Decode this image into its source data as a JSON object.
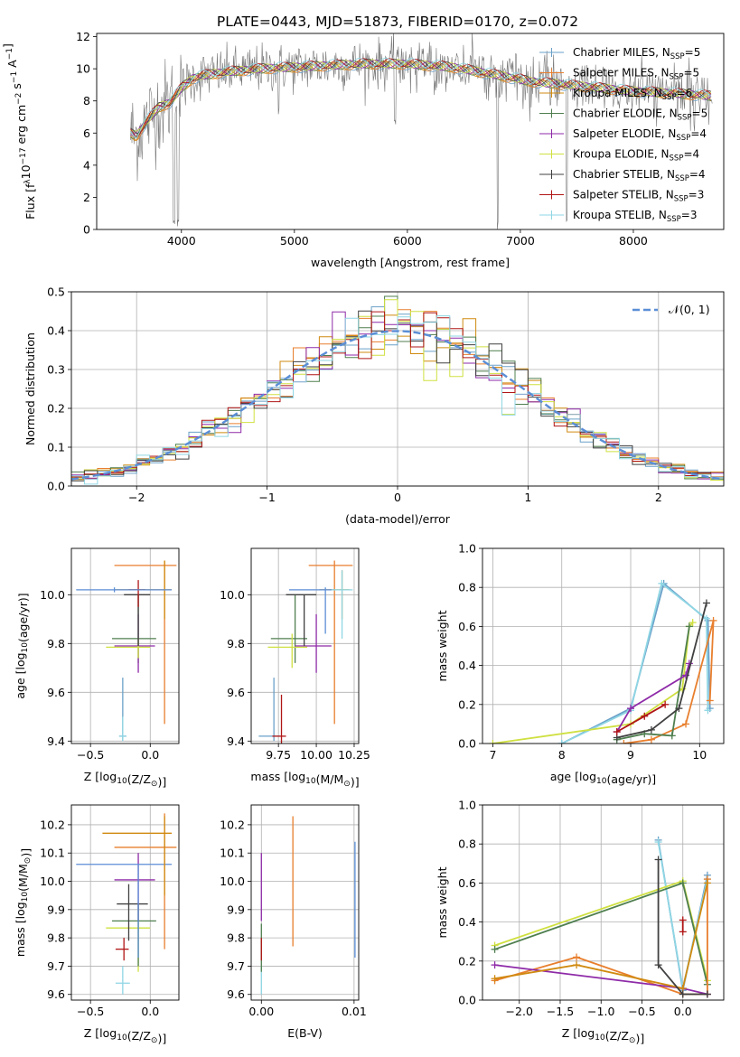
{
  "figure_title": "PLATE=0443, MJD=51873, FIBERID=0170, z=0.072",
  "colors": {
    "Chabrier MILES": "#6aa0c8",
    "Salpeter MILES": "#e87f2e",
    "Kroupa MILES": "#d08a10",
    "Chabrier ELODIE": "#4f7f4f",
    "Salpeter ELODIE": "#8e2aa8",
    "Kroupa ELODIE": "#cfe040",
    "Chabrier STELIB": "#404040",
    "Salpeter STELIB": "#b01515",
    "Kroupa STELIB": "#8fd6e4",
    "normal": "#5b8ed6",
    "grid": "#b0b0b0"
  },
  "legend_spectrum": [
    {
      "label": "Chabrier MILES, N",
      "sub": "SSP",
      "eq": "=5",
      "key": "Chabrier MILES"
    },
    {
      "label": "Salpeter MILES, N",
      "sub": "SSP",
      "eq": "=5",
      "key": "Salpeter MILES"
    },
    {
      "label": "Kroupa MILES, N",
      "sub": "SSP",
      "eq": "=6",
      "key": "Kroupa MILES"
    },
    {
      "label": "Chabrier ELODIE, N",
      "sub": "SSP",
      "eq": "=5",
      "key": "Chabrier ELODIE"
    },
    {
      "label": "Salpeter ELODIE, N",
      "sub": "SSP",
      "eq": "=4",
      "key": "Salpeter ELODIE"
    },
    {
      "label": "Kroupa ELODIE, N",
      "sub": "SSP",
      "eq": "=4",
      "key": "Kroupa ELODIE"
    },
    {
      "label": "Chabrier STELIB, N",
      "sub": "SSP",
      "eq": "=4",
      "key": "Chabrier STELIB"
    },
    {
      "label": "Salpeter STELIB, N",
      "sub": "SSP",
      "eq": "=3",
      "key": "Salpeter STELIB"
    },
    {
      "label": "Kroupa STELIB, N",
      "sub": "SSP",
      "eq": "=3",
      "key": "Kroupa STELIB"
    }
  ],
  "chart_data": [
    {
      "id": "spectrum",
      "type": "line",
      "xlabel": "wavelength [Angstrom, rest frame]",
      "ylabel_parts": [
        "Flux [f",
        "λ",
        "10",
        "−17",
        " erg cm",
        "−2",
        " s",
        "−1",
        " A",
        "−1",
        "]"
      ],
      "xlim": [
        3250,
        8800
      ],
      "ylim": [
        0,
        12.2
      ],
      "xticks": [
        4000,
        5000,
        6000,
        7000,
        8000
      ],
      "yticks": [
        0,
        2,
        4,
        6,
        8,
        10,
        12
      ],
      "continuum": {
        "x": [
          3550,
          3600,
          3700,
          3800,
          3900,
          4000,
          4100,
          4200,
          4400,
          4700,
          5000,
          5300,
          5600,
          6000,
          6400,
          6800,
          7100,
          7400,
          7700,
          8000,
          8300,
          8500,
          8700
        ],
        "y": [
          6.0,
          5.8,
          6.8,
          7.6,
          7.9,
          8.8,
          9.4,
          9.6,
          9.8,
          10.0,
          10.1,
          10.2,
          10.3,
          10.3,
          10.1,
          9.6,
          9.2,
          9.0,
          8.8,
          8.6,
          8.5,
          8.4,
          8.3
        ]
      },
      "dips": [
        {
          "x": 3934,
          "y": 0.0
        },
        {
          "x": 3969,
          "y": 0.0
        },
        {
          "x": 6800,
          "y": 0.0
        },
        {
          "x": 7410,
          "y": 0.0
        },
        {
          "x": 4861,
          "y": 7.0
        },
        {
          "x": 5890,
          "y": 6.5
        },
        {
          "x": 8540,
          "y": 6.0
        }
      ]
    },
    {
      "id": "residual-histogram",
      "type": "step",
      "xlabel": "(data-model)/error",
      "ylabel": "Normed distribution",
      "xlim": [
        -2.5,
        2.5
      ],
      "ylim": [
        0,
        0.5
      ],
      "xticks": [
        -2,
        -1,
        0,
        1,
        2
      ],
      "xtick_labels": [
        "−2",
        "−1",
        "0",
        "1",
        "2"
      ],
      "yticks": [
        0,
        0.1,
        0.2,
        0.3,
        0.4,
        0.5
      ],
      "ytick_labels": [
        "0.0",
        "0.1",
        "0.2",
        "0.3",
        "0.4",
        "0.5"
      ],
      "bin_width": 0.1,
      "legend_math": "𝒩(0, 1)",
      "series_keys": [
        "Chabrier MILES",
        "Salpeter MILES",
        "Kroupa MILES",
        "Chabrier ELODIE",
        "Salpeter ELODIE",
        "Kroupa ELODIE",
        "Chabrier STELIB",
        "Salpeter STELIB",
        "Kroupa STELIB"
      ]
    },
    {
      "id": "age-vs-Z",
      "type": "errorbar",
      "xlabel_parts": [
        "Z [log",
        "10",
        "(Z/Z",
        "⊙",
        ")]"
      ],
      "ylabel_parts": [
        "age  [log",
        "10",
        "(age/yr)]"
      ],
      "xlim": [
        -0.66,
        0.24
      ],
      "ylim": [
        9.39,
        10.19
      ],
      "xticks": [
        -0.5,
        0.0
      ],
      "xtick_labels": [
        "−0.5",
        "0.0"
      ],
      "yticks": [
        9.4,
        9.6,
        9.8,
        10.0
      ],
      "ytick_labels": [
        "9.4",
        "9.6",
        "9.8",
        "10.0"
      ],
      "points": [
        {
          "key": "Chabrier MILES",
          "x": -0.23,
          "xlo": -0.26,
          "xhi": -0.2,
          "y": 9.42,
          "ylo": 9.4,
          "yhi": 9.66
        },
        {
          "key": "Kroupa STELIB",
          "x": -0.23,
          "xlo": -0.26,
          "xhi": -0.2,
          "y": 9.42,
          "ylo": 9.4,
          "yhi": 9.5
        },
        {
          "key": "Salpeter MILES",
          "x": 0.12,
          "xlo": -0.3,
          "xhi": 0.22,
          "y": 10.12,
          "ylo": 9.47,
          "yhi": 10.14
        },
        {
          "key": "Kroupa MILES",
          "x": 0.12,
          "xlo": -0.3,
          "xhi": 0.18,
          "y": 10.02,
          "ylo": 9.9,
          "yhi": 10.14
        },
        {
          "key": "Chabrier ELODIE",
          "x": -0.1,
          "xlo": -0.32,
          "xhi": 0.05,
          "y": 9.82,
          "ylo": 9.72,
          "yhi": 10.0
        },
        {
          "key": "Salpeter ELODIE",
          "x": -0.1,
          "xlo": -0.3,
          "xhi": 0.04,
          "y": 9.79,
          "ylo": 9.68,
          "yhi": 9.92
        },
        {
          "key": "Kroupa ELODIE",
          "x": -0.1,
          "xlo": -0.37,
          "xhi": 0.0,
          "y": 9.785,
          "ylo": 9.74,
          "yhi": 9.82
        },
        {
          "key": "Chabrier STELIB",
          "x": -0.1,
          "xlo": -0.22,
          "xhi": 0.0,
          "y": 10.0,
          "ylo": 9.79,
          "yhi": 10.0
        },
        {
          "key": "Salpeter STELIB",
          "x": -0.1,
          "xlo": -0.18,
          "xhi": -0.04,
          "y": 10.02,
          "ylo": 9.95,
          "yhi": 10.06
        },
        {
          "key": "normal",
          "x": -0.3,
          "xlo": -0.62,
          "xhi": 0.18,
          "y": 10.02,
          "ylo": 10.01,
          "yhi": 10.03
        }
      ]
    },
    {
      "id": "age-vs-mass",
      "type": "errorbar",
      "xlabel_parts": [
        "mass [log",
        "10",
        "(M/M",
        "⊙",
        ")]"
      ],
      "ylabel_parts": [],
      "xlim": [
        9.57,
        10.28
      ],
      "ylim": [
        9.39,
        10.19
      ],
      "xticks": [
        9.75,
        10.0,
        10.25
      ],
      "xtick_labels": [
        "9.75",
        "10.00",
        "10.25"
      ],
      "yticks": [
        9.4,
        9.6,
        9.8,
        10.0
      ],
      "ytick_labels": [
        "9.4",
        "9.6",
        "9.8",
        "10.0"
      ],
      "points": [
        {
          "key": "Chabrier MILES",
          "x": 9.72,
          "xlo": 9.62,
          "xhi": 9.76,
          "y": 9.42,
          "ylo": 9.4,
          "yhi": 9.66
        },
        {
          "key": "Salpeter STELIB",
          "x": 9.77,
          "xlo": 9.71,
          "xhi": 9.8,
          "y": 9.42,
          "ylo": 9.38,
          "yhi": 9.59
        },
        {
          "key": "Salpeter MILES",
          "x": 10.12,
          "xlo": 9.95,
          "xhi": 10.24,
          "y": 10.12,
          "ylo": 9.47,
          "yhi": 10.14
        },
        {
          "key": "Kroupa MILES",
          "x": 10.17,
          "xlo": 10.02,
          "xhi": 10.22,
          "y": 10.02,
          "ylo": 9.9,
          "yhi": 10.1
        },
        {
          "key": "Chabrier ELODIE",
          "x": 9.86,
          "xlo": 9.7,
          "xhi": 9.94,
          "y": 9.82,
          "ylo": 9.72,
          "yhi": 10.0
        },
        {
          "key": "Salpeter ELODIE",
          "x": 10.0,
          "xlo": 9.86,
          "xhi": 10.1,
          "y": 9.79,
          "ylo": 9.68,
          "yhi": 9.92
        },
        {
          "key": "Kroupa ELODIE",
          "x": 9.84,
          "xlo": 9.68,
          "xhi": 9.94,
          "y": 9.785,
          "ylo": 9.7,
          "yhi": 9.84
        },
        {
          "key": "Chabrier STELIB",
          "x": 9.92,
          "xlo": 9.8,
          "xhi": 10.0,
          "y": 10.0,
          "ylo": 9.79,
          "yhi": 10.0
        },
        {
          "key": "normal",
          "x": 10.06,
          "xlo": 9.82,
          "xhi": 10.12,
          "y": 10.02,
          "ylo": 9.84,
          "yhi": 10.03
        },
        {
          "key": "Kroupa STELIB",
          "x": 10.17,
          "xlo": 10.1,
          "xhi": 10.24,
          "y": 10.02,
          "ylo": 9.82,
          "yhi": 10.1
        }
      ]
    },
    {
      "id": "weight-vs-age",
      "type": "line",
      "xlabel_parts": [
        "age  [log",
        "10",
        "(age/yr)]"
      ],
      "ylabel": "mass weight",
      "xlim": [
        6.85,
        10.35
      ],
      "ylim": [
        0,
        1.0
      ],
      "xticks": [
        7,
        8,
        9,
        10
      ],
      "xtick_labels": [
        "7",
        "8",
        "9",
        "10"
      ],
      "yticks": [
        0,
        0.2,
        0.4,
        0.6,
        0.8,
        1.0
      ],
      "ytick_labels": [
        "0.0",
        "0.2",
        "0.4",
        "0.6",
        "0.8",
        "1.0"
      ],
      "series": [
        {
          "key": "Chabrier MILES",
          "x": [
            8.0,
            9.0,
            9.48,
            10.12,
            10.15
          ],
          "y": [
            0.0,
            0.18,
            0.82,
            0.63,
            0.18
          ]
        },
        {
          "key": "Kroupa STELIB",
          "x": [
            8.0,
            9.0,
            9.45,
            10.1,
            10.12
          ],
          "y": [
            0.0,
            0.17,
            0.82,
            0.64,
            0.17
          ]
        },
        {
          "key": "Salpeter MILES",
          "x": [
            8.9,
            9.3,
            9.8,
            10.2,
            10.15
          ],
          "y": [
            0.0,
            0.02,
            0.1,
            0.63,
            0.22
          ]
        },
        {
          "key": "Kroupa ELODIE",
          "x": [
            7.0,
            9.0,
            9.75,
            9.85,
            9.9
          ],
          "y": [
            0.0,
            0.1,
            0.28,
            0.6,
            0.62
          ]
        },
        {
          "key": "Chabrier ELODIE",
          "x": [
            8.8,
            9.2,
            9.6,
            9.85
          ],
          "y": [
            0.02,
            0.05,
            0.04,
            0.6
          ]
        },
        {
          "key": "Salpeter ELODIE",
          "x": [
            8.8,
            9.0,
            9.8,
            9.85
          ],
          "y": [
            0.06,
            0.18,
            0.35,
            0.41
          ]
        },
        {
          "key": "Chabrier STELIB",
          "x": [
            8.8,
            9.3,
            9.7,
            10.1
          ],
          "y": [
            0.03,
            0.07,
            0.18,
            0.72
          ]
        },
        {
          "key": "Salpeter STELIB",
          "x": [
            8.8,
            9.2,
            9.5
          ],
          "y": [
            0.06,
            0.14,
            0.2
          ]
        }
      ]
    },
    {
      "id": "mass-vs-Z",
      "type": "errorbar",
      "xlabel_parts": [
        "Z [log",
        "10",
        "(Z/Z",
        "⊙",
        ")]"
      ],
      "ylabel_parts": [
        "mass [log",
        "10",
        "(M/M",
        "⊙",
        ")]"
      ],
      "xlim": [
        -0.66,
        0.24
      ],
      "ylim": [
        9.58,
        10.27
      ],
      "xticks": [
        -0.5,
        0.0
      ],
      "xtick_labels": [
        "−0.5",
        "0.0"
      ],
      "yticks": [
        9.6,
        9.7,
        9.8,
        9.9,
        10.0,
        10.1,
        10.2
      ],
      "ytick_labels": [
        "9.6",
        "9.7",
        "9.8",
        "9.9",
        "10.0",
        "10.1",
        "10.2"
      ],
      "points": [
        {
          "key": "Kroupa STELIB",
          "x": -0.23,
          "xlo": -0.29,
          "xhi": -0.17,
          "y": 9.64,
          "ylo": 9.6,
          "yhi": 9.7
        },
        {
          "key": "Salpeter STELIB",
          "x": -0.22,
          "xlo": -0.29,
          "xhi": -0.18,
          "y": 9.76,
          "ylo": 9.72,
          "yhi": 9.8
        },
        {
          "key": "Kroupa ELODIE",
          "x": -0.1,
          "xlo": -0.37,
          "xhi": 0.0,
          "y": 9.835,
          "ylo": 9.68,
          "yhi": 9.92
        },
        {
          "key": "Chabrier ELODIE",
          "x": -0.1,
          "xlo": -0.32,
          "xhi": 0.05,
          "y": 9.86,
          "ylo": 9.7,
          "yhi": 9.92
        },
        {
          "key": "Chabrier STELIB",
          "x": -0.18,
          "xlo": -0.28,
          "xhi": -0.02,
          "y": 9.92,
          "ylo": 9.79,
          "yhi": 9.99
        },
        {
          "key": "Salpeter ELODIE",
          "x": -0.1,
          "xlo": -0.3,
          "xhi": 0.04,
          "y": 10.005,
          "ylo": 9.86,
          "yhi": 10.1
        },
        {
          "key": "normal",
          "x": -0.1,
          "xlo": -0.62,
          "xhi": 0.18,
          "y": 10.06,
          "ylo": 9.73,
          "yhi": 10.06
        },
        {
          "key": "Salpeter MILES",
          "x": 0.12,
          "xlo": -0.3,
          "xhi": 0.22,
          "y": 10.12,
          "ylo": 9.76,
          "yhi": 10.24
        },
        {
          "key": "Kroupa MILES",
          "x": 0.12,
          "xlo": -0.4,
          "xhi": 0.18,
          "y": 10.17,
          "ylo": 9.95,
          "yhi": 10.23
        }
      ]
    },
    {
      "id": "mass-vs-ebv",
      "type": "errorbar",
      "xlabel": "E(B-V)",
      "xlim": [
        -0.0011,
        0.0105
      ],
      "ylim": [
        9.58,
        10.27
      ],
      "xticks": [
        0.0,
        0.01
      ],
      "xtick_labels": [
        "0.00",
        "0.01"
      ],
      "yticks": [
        9.6,
        9.7,
        9.8,
        9.9,
        10.0,
        10.1,
        10.2
      ],
      "ytick_labels": [
        "9.6",
        "9.7",
        "9.8",
        "9.9",
        "10.0",
        "10.1",
        "10.2"
      ],
      "points": [
        {
          "key": "Kroupa STELIB",
          "x": 0.0,
          "y": 9.64,
          "ylo": 9.6,
          "yhi": 9.7
        },
        {
          "key": "Chabrier ELODIE",
          "x": 0.0,
          "y": 9.75,
          "ylo": 9.68,
          "yhi": 9.85
        },
        {
          "key": "Salpeter STELIB",
          "x": 0.0,
          "y": 9.76,
          "ylo": 9.72,
          "yhi": 9.8
        },
        {
          "key": "Salpeter ELODIE",
          "x": 0.0,
          "y": 10.0,
          "ylo": 9.86,
          "yhi": 10.1
        },
        {
          "key": "Salpeter MILES",
          "x": 0.0034,
          "y": 10.0,
          "ylo": 9.77,
          "yhi": 10.23
        },
        {
          "key": "normal",
          "x": 0.0101,
          "y": 9.9,
          "ylo": 9.73,
          "yhi": 10.14
        }
      ]
    },
    {
      "id": "weight-vs-Z",
      "type": "line",
      "xlabel_parts": [
        "Z [log",
        "10",
        "(Z/Z",
        "⊙",
        ")]"
      ],
      "ylabel": "mass weight",
      "xlim": [
        -2.45,
        0.5
      ],
      "ylim": [
        0,
        1.0
      ],
      "xticks": [
        -2.0,
        -1.5,
        -1.0,
        -0.5,
        0.0
      ],
      "xtick_labels": [
        "−2.0",
        "−1.5",
        "−1.0",
        "−0.5",
        "0.0"
      ],
      "yticks": [
        0,
        0.2,
        0.4,
        0.6,
        0.8,
        1.0
      ],
      "ytick_labels": [
        "0.0",
        "0.2",
        "0.4",
        "0.6",
        "0.8",
        "1.0"
      ],
      "series": [
        {
          "key": "Chabrier MILES",
          "x": [
            -0.3,
            0.0,
            0.3
          ],
          "y": [
            0.82,
            0.05,
            0.64
          ]
        },
        {
          "key": "Kroupa STELIB",
          "x": [
            -0.3,
            0.0,
            0.3
          ],
          "y": [
            0.81,
            0.06,
            0.62
          ]
        },
        {
          "key": "Kroupa ELODIE",
          "x": [
            -2.3,
            0.0,
            0.3
          ],
          "y": [
            0.28,
            0.61,
            0.1
          ]
        },
        {
          "key": "Chabrier ELODIE",
          "x": [
            -2.3,
            0.0,
            0.3
          ],
          "y": [
            0.26,
            0.6,
            0.08
          ]
        },
        {
          "key": "Salpeter MILES",
          "x": [
            -2.3,
            -1.3,
            0.0,
            0.3,
            0.3
          ],
          "y": [
            0.1,
            0.22,
            0.03,
            0.03,
            0.62
          ]
        },
        {
          "key": "Salpeter ELODIE",
          "x": [
            -2.3,
            0.0,
            0.3
          ],
          "y": [
            0.18,
            0.06,
            0.03
          ]
        },
        {
          "key": "Kroupa MILES",
          "x": [
            -2.3,
            -1.3,
            0.0,
            0.3
          ],
          "y": [
            0.11,
            0.18,
            0.06,
            0.6
          ]
        },
        {
          "key": "Chabrier STELIB",
          "x": [
            -0.3,
            -0.3,
            0.0,
            0.3
          ],
          "y": [
            0.72,
            0.18,
            0.03,
            0.03
          ]
        },
        {
          "key": "Salpeter STELIB",
          "x": [
            0.0,
            0.0
          ],
          "y": [
            0.41,
            0.35
          ]
        }
      ]
    }
  ]
}
